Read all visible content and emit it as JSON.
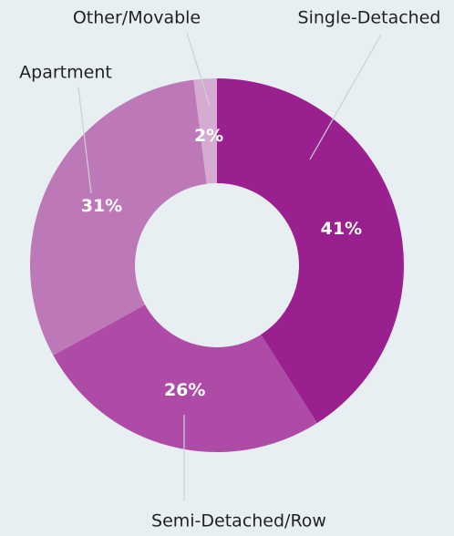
{
  "chart_data": {
    "type": "donut",
    "categories": [
      "Single-Detached",
      "Semi-Detached/Row",
      "Apartment",
      "Other/Movable"
    ],
    "values": [
      41,
      26,
      31,
      2
    ],
    "value_labels": [
      "41%",
      "26%",
      "31%",
      "2%"
    ],
    "colors": [
      "#9b208f",
      "#ad4ba6",
      "#bd78b8",
      "#d5abd1"
    ]
  }
}
